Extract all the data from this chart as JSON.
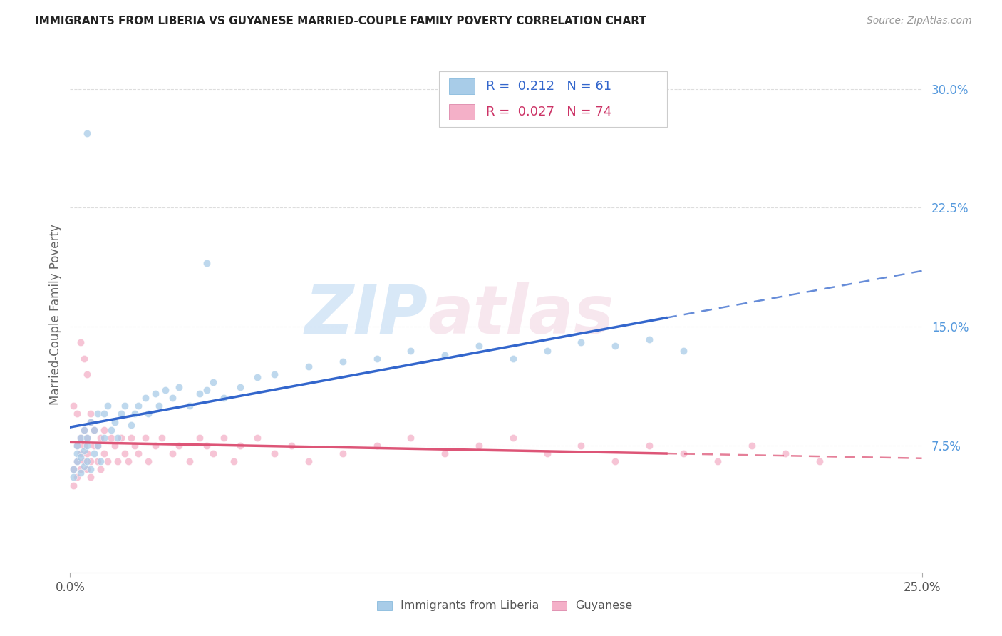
{
  "title": "IMMIGRANTS FROM LIBERIA VS GUYANESE MARRIED-COUPLE FAMILY POVERTY CORRELATION CHART",
  "source": "Source: ZipAtlas.com",
  "ylabel": "Married-Couple Family Poverty",
  "yticks": [
    "7.5%",
    "15.0%",
    "22.5%",
    "30.0%"
  ],
  "ytick_vals": [
    0.075,
    0.15,
    0.225,
    0.3
  ],
  "xlim": [
    0.0,
    0.25
  ],
  "ylim": [
    -0.005,
    0.32
  ],
  "legend_liberia_r": "0.212",
  "legend_liberia_n": "61",
  "legend_guyanese_r": "0.027",
  "legend_guyanese_n": "74",
  "legend_labels": [
    "Immigrants from Liberia",
    "Guyanese"
  ],
  "color_liberia": "#a8cce8",
  "color_guyanese": "#f4b0c8",
  "color_liberia_line": "#3366cc",
  "color_guyanese_line": "#dd5577",
  "background_color": "#ffffff",
  "watermark_color": "#ddeeff",
  "watermark_color2": "#f5dde8"
}
